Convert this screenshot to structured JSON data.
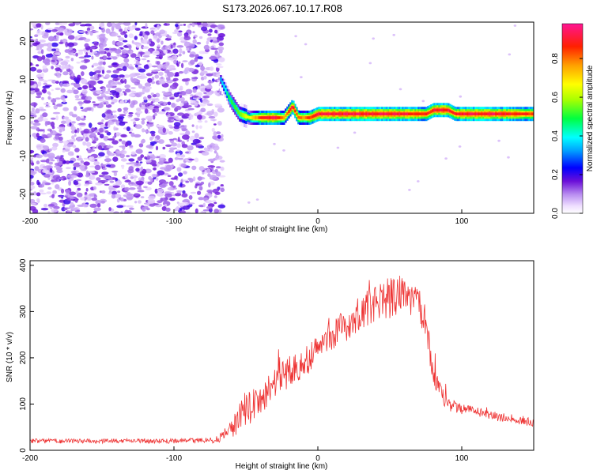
{
  "title": "S173.2026.067.10.17.R08",
  "chart_data": [
    {
      "type": "heatmap",
      "xlabel": "Height of straight line (km)",
      "ylabel": "Frequency (Hz)",
      "xlim": [
        -200,
        150
      ],
      "ylim": [
        -25,
        25
      ],
      "xticks": [
        -200,
        -100,
        0,
        100
      ],
      "yticks": [
        -20,
        -10,
        0,
        10,
        20
      ],
      "noise_region_x": [
        -200,
        -68
      ],
      "ridge": {
        "x": [
          -68,
          -62,
          -55,
          -48,
          -40,
          -30,
          -24,
          -18,
          -14,
          -10,
          -6,
          0,
          10,
          30,
          60,
          75,
          80,
          90,
          95,
          100,
          120,
          150
        ],
        "y": [
          10,
          5,
          1,
          0,
          0,
          0,
          0,
          3,
          0,
          0,
          0,
          1,
          1,
          1,
          1,
          1,
          2,
          2,
          1,
          1,
          1,
          1
        ],
        "intensity": [
          0.35,
          0.5,
          0.55,
          0.7,
          0.9,
          0.95,
          0.8,
          0.95,
          0.85,
          0.8,
          0.9,
          0.95,
          0.95,
          0.95,
          0.95,
          0.9,
          0.95,
          0.95,
          0.9,
          0.95,
          0.95,
          0.9
        ]
      },
      "colorbar": {
        "label": "Normalized spectral amplitude",
        "min": 0.0,
        "max": 0.98,
        "ticks": [
          0.0,
          0.2,
          0.4,
          0.6,
          0.8
        ],
        "tick_labels": [
          "0.0",
          "0.2",
          "0.4",
          "0.6",
          "0.8"
        ]
      },
      "grid": false
    },
    {
      "type": "line",
      "xlabel": "Height of straight line (km)",
      "ylabel": "SNR (10 * v/v)",
      "xlim": [
        -200,
        150
      ],
      "ylim": [
        0,
        410
      ],
      "xticks": [
        -200,
        -100,
        0,
        100
      ],
      "yticks": [
        0,
        100,
        200,
        300,
        400
      ],
      "series": [
        {
          "name": "SNR",
          "color": "#ee3333",
          "x": [
            -200,
            -150,
            -100,
            -70,
            -60,
            -50,
            -40,
            -30,
            -20,
            -10,
            0,
            10,
            20,
            30,
            40,
            50,
            60,
            70,
            75,
            80,
            85,
            90,
            100,
            110,
            120,
            130,
            140,
            150
          ],
          "y": [
            20,
            20,
            20,
            22,
            45,
            90,
            110,
            150,
            170,
            190,
            220,
            250,
            270,
            300,
            320,
            330,
            340,
            320,
            270,
            170,
            130,
            100,
            90,
            85,
            75,
            70,
            65,
            60
          ],
          "noise": [
            5,
            5,
            5,
            6,
            20,
            40,
            35,
            35,
            35,
            35,
            35,
            35,
            35,
            40,
            40,
            45,
            45,
            40,
            40,
            25,
            20,
            15,
            12,
            10,
            10,
            10,
            10,
            10
          ]
        }
      ],
      "grid": false
    }
  ]
}
